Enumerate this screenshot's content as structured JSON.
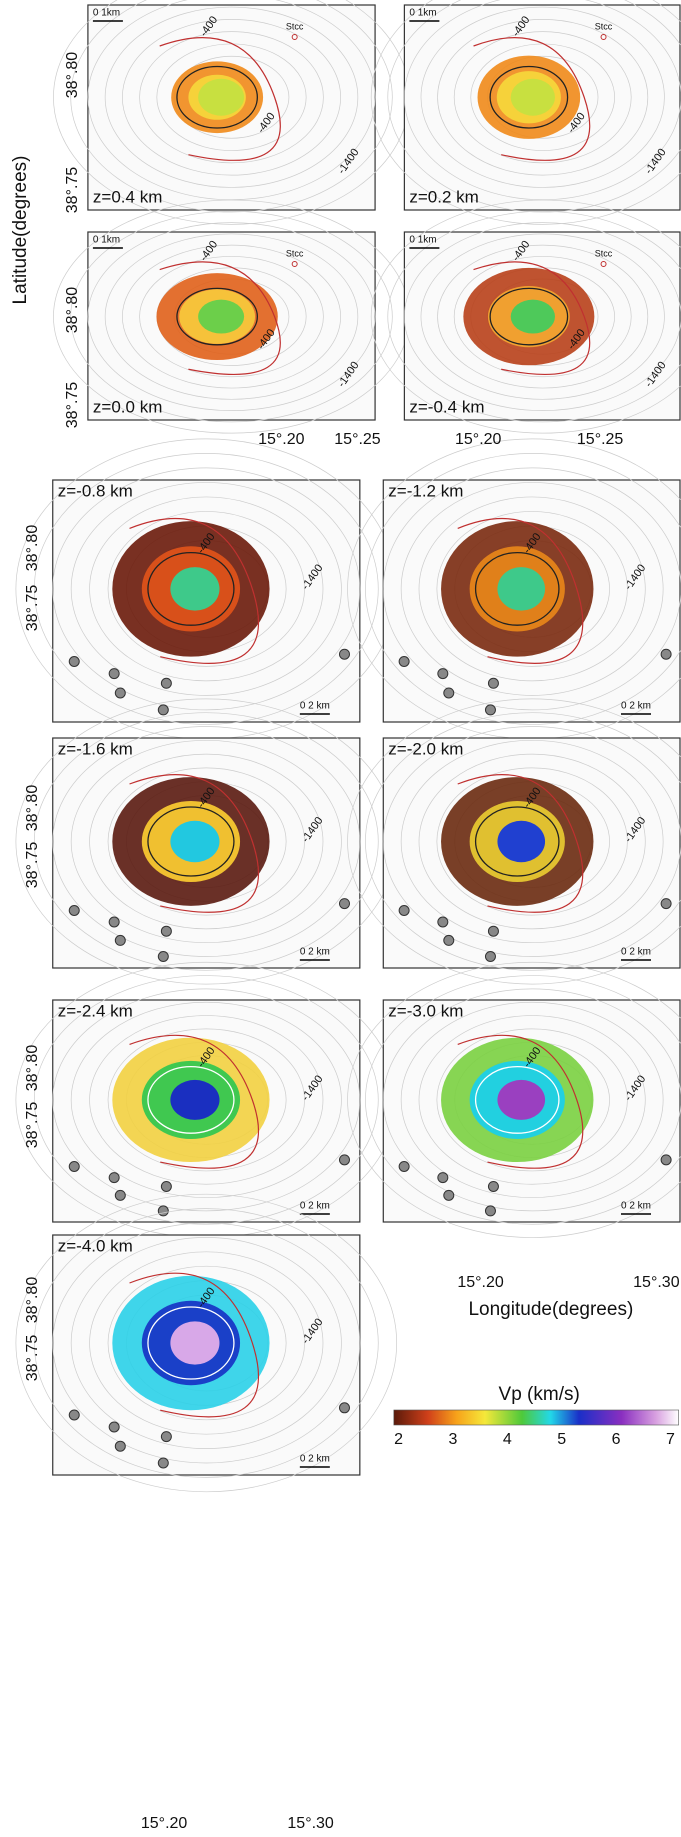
{
  "figure": {
    "y_axis_label": "Latitude(degrees)",
    "x_axis_label": "Longitude(degrees)",
    "lat_ticks": [
      "38°.80",
      "38°.75"
    ],
    "lon_ticks_upper": [
      "15°.20",
      "15°.25"
    ],
    "lon_ticks_lower": [
      "15°.20",
      "15°.30"
    ],
    "colorbar": {
      "title": "Vp (km/s)",
      "ticks": [
        "2",
        "3",
        "4",
        "5",
        "6",
        "7"
      ]
    },
    "panels": [
      {
        "depth": "z=0.4 km",
        "scale": "0  1km",
        "station": "Stcc",
        "contours": [
          "-400",
          "-400",
          "-1400"
        ]
      },
      {
        "depth": "z=0.2 km",
        "scale": "0  1km",
        "station": "Stcc",
        "contours": [
          "-400",
          "-400",
          "-1400"
        ]
      },
      {
        "depth": "z=0.0 km",
        "scale": "0  1km",
        "station": "Stcc",
        "contours": [
          "-400",
          "-400",
          "-1400"
        ]
      },
      {
        "depth": "z=-0.4 km",
        "scale": "0  1km",
        "station": "Stcc",
        "contours": [
          "-400",
          "-400",
          "-1400"
        ]
      },
      {
        "depth": "z=-0.8 km",
        "scale": "0   2 km",
        "contours": [
          "-400",
          "-1400"
        ]
      },
      {
        "depth": "z=-1.2 km",
        "scale": "0   2 km",
        "contours": [
          "-400",
          "-1400"
        ]
      },
      {
        "depth": "z=-1.6 km",
        "scale": "0   2 km",
        "contours": [
          "-400",
          "-1400"
        ]
      },
      {
        "depth": "z=-2.0 km",
        "scale": "0   2 km",
        "contours": [
          "-400",
          "-1400"
        ]
      },
      {
        "depth": "z=-2.4 km",
        "scale": "0   2 km",
        "contours": [
          "-400",
          "-1400"
        ]
      },
      {
        "depth": "z=-3.0 km",
        "scale": "0   2 km",
        "contours": [
          "-400",
          "-1400"
        ]
      },
      {
        "depth": "z=-4.0 km",
        "scale": "0   2 km",
        "contours": [
          "-400",
          "-1400"
        ]
      }
    ]
  }
}
